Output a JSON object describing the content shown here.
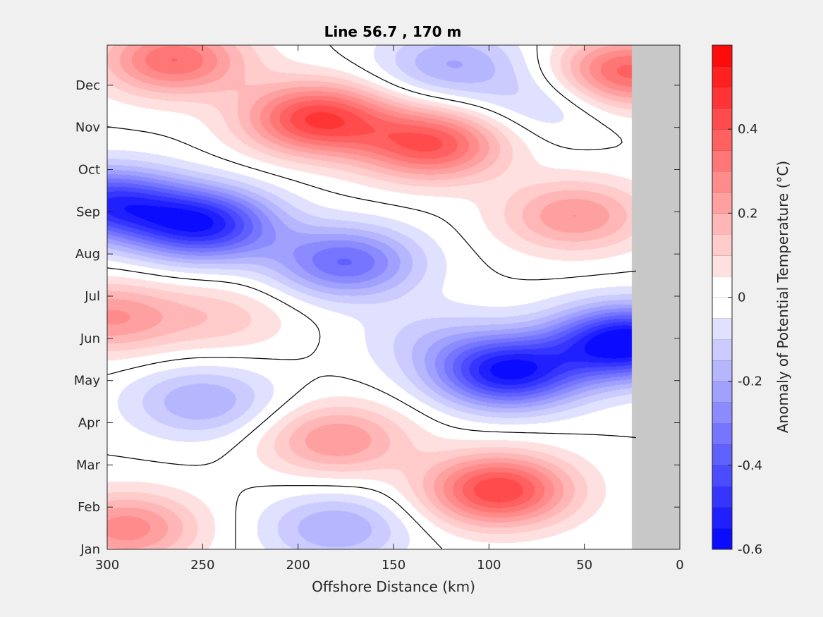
{
  "chart_data": {
    "type": "heatmap",
    "title": "Line 56.7 , 170 m",
    "xlabel": "Offshore Distance (km)",
    "ylabel": "",
    "x_axis": {
      "reversed": true,
      "xlim": [
        0,
        300
      ],
      "ticks": [
        300,
        250,
        200,
        150,
        100,
        50,
        0
      ],
      "tick_labels": [
        "300",
        "250",
        "200",
        "150",
        "100",
        "50",
        "0"
      ]
    },
    "y_axis": {
      "ticks": [
        1,
        2,
        3,
        4,
        5,
        6,
        7,
        8,
        9,
        10,
        11,
        12
      ],
      "tick_labels": [
        "Jan",
        "Feb",
        "Mar",
        "Apr",
        "May",
        "Jun",
        "Jul",
        "Aug",
        "Sep",
        "Oct",
        "Nov",
        "Dec"
      ],
      "ylim": [
        1,
        12.95
      ]
    },
    "land_mask_x_range": [
      0,
      25
    ],
    "land_mask_color": "#c8c8c8",
    "colorbar": {
      "label": "Anomaly of Potential Temperature (°C)",
      "clim": [
        -0.6,
        0.6
      ],
      "ticks": [
        0.4,
        0.2,
        0,
        -0.2,
        -0.4,
        -0.6
      ],
      "tick_labels": [
        "0.4",
        "0.2",
        "0",
        "-0.2",
        "-0.4",
        "-0.6"
      ],
      "levels": 24,
      "cold_color": "#0000ff",
      "warm_color": "#ff0000"
    },
    "zero_contour": true,
    "anomaly_features": [
      {
        "x": 300,
        "y": 9.2,
        "value": -0.45
      },
      {
        "x": 250,
        "y": 8.7,
        "value": -0.52
      },
      {
        "x": 175,
        "y": 7.8,
        "value": -0.35
      },
      {
        "x": 90,
        "y": 5.2,
        "value": -0.55
      },
      {
        "x": 28,
        "y": 5.9,
        "value": -0.62
      },
      {
        "x": 95,
        "y": 2.4,
        "value": 0.45
      },
      {
        "x": 180,
        "y": 3.6,
        "value": 0.25
      },
      {
        "x": 290,
        "y": 1.5,
        "value": 0.28
      },
      {
        "x": 240,
        "y": 6.5,
        "value": 0.12
      },
      {
        "x": 300,
        "y": 6.5,
        "value": 0.25
      },
      {
        "x": 190,
        "y": 11.2,
        "value": 0.45
      },
      {
        "x": 130,
        "y": 10.6,
        "value": 0.4
      },
      {
        "x": 265,
        "y": 12.6,
        "value": 0.35
      },
      {
        "x": 28,
        "y": 12.3,
        "value": 0.38
      },
      {
        "x": 55,
        "y": 8.9,
        "value": 0.25
      },
      {
        "x": 120,
        "y": 12.5,
        "value": -0.2
      },
      {
        "x": 250,
        "y": 4.5,
        "value": -0.2
      },
      {
        "x": 180,
        "y": 1.5,
        "value": -0.2
      },
      {
        "x": 70,
        "y": 11.6,
        "value": -0.12
      },
      {
        "x": 130,
        "y": 6.0,
        "value": -0.1
      }
    ]
  }
}
